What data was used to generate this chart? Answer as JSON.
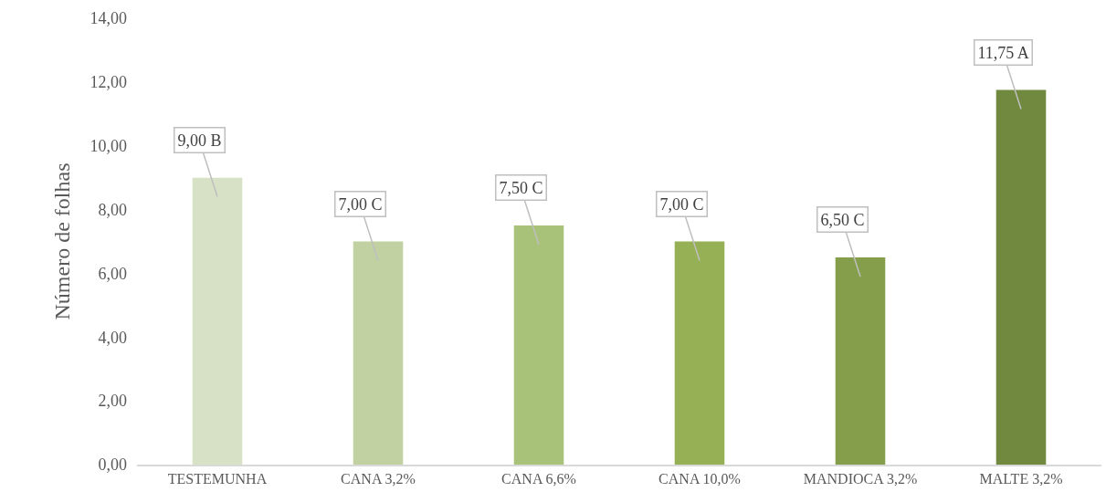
{
  "chart_data": {
    "type": "bar",
    "ylabel": "Número de folhas",
    "categories": [
      "TESTEMUNHA",
      "CANA 3,2%",
      "CANA 6,6%",
      "CANA 10,0%",
      "MANDIOCA 3,2%",
      "MALTE 3,2%"
    ],
    "values": [
      9.0,
      7.0,
      7.5,
      7.0,
      6.5,
      11.75
    ],
    "colors": [
      "#d7e1c6",
      "#c1d1a2",
      "#a9c279",
      "#95b055",
      "#849e4b",
      "#70893e"
    ],
    "value_labels": [
      "9,00 B",
      "7,00 C",
      "7,50 C",
      "7,00 C",
      "6,50 C",
      "11,75 A"
    ],
    "ylim": [
      0,
      14
    ],
    "yticks": [
      {
        "value": 0,
        "label": "0,00"
      },
      {
        "value": 2,
        "label": "2,00"
      },
      {
        "value": 4,
        "label": "4,00"
      },
      {
        "value": 6,
        "label": "6,00"
      },
      {
        "value": 8,
        "label": "8,00"
      },
      {
        "value": 10,
        "label": "10,00"
      },
      {
        "value": 12,
        "label": "12,00"
      },
      {
        "value": 14,
        "label": "14,00"
      }
    ],
    "legend": false
  }
}
